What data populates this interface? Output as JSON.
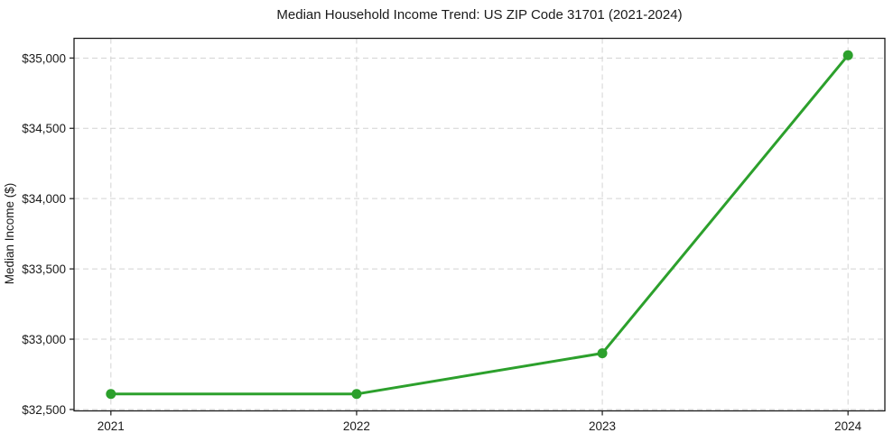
{
  "chart_data": {
    "type": "line",
    "title": "Median Household Income Trend: US ZIP Code 31701 (2021-2024)",
    "xlabel": "",
    "ylabel": "Median Income ($)",
    "x": [
      2021,
      2022,
      2023,
      2024
    ],
    "categories": [
      "2021",
      "2022",
      "2023",
      "2024"
    ],
    "series": [
      {
        "name": "Median Household Income",
        "values": [
          32610,
          32610,
          32900,
          35020
        ]
      }
    ],
    "xlim": [
      2020.85,
      2024.15
    ],
    "ylim": [
      32490,
      35140
    ],
    "yticks": [
      {
        "value": 32500,
        "label": "$32,500"
      },
      {
        "value": 33000,
        "label": "$33,000"
      },
      {
        "value": 33500,
        "label": "$33,500"
      },
      {
        "value": 34000,
        "label": "$34,000"
      },
      {
        "value": 34500,
        "label": "$34,500"
      },
      {
        "value": 35000,
        "label": "$35,000"
      }
    ],
    "xticks": [
      {
        "value": 2021,
        "label": "2021"
      },
      {
        "value": 2022,
        "label": "2022"
      },
      {
        "value": 2023,
        "label": "2023"
      },
      {
        "value": 2024,
        "label": "2024"
      }
    ],
    "grid": {
      "visible": true,
      "style": "dashed",
      "color": "#d3d3d3"
    },
    "legend": {
      "visible": false
    },
    "line_color": "#2ca02c",
    "line_width": 3,
    "marker": {
      "shape": "circle",
      "color": "#2ca02c",
      "size": 11
    },
    "axis_color": "#1a1a1a",
    "text_color": "#1a1a1a",
    "background": "#ffffff"
  }
}
